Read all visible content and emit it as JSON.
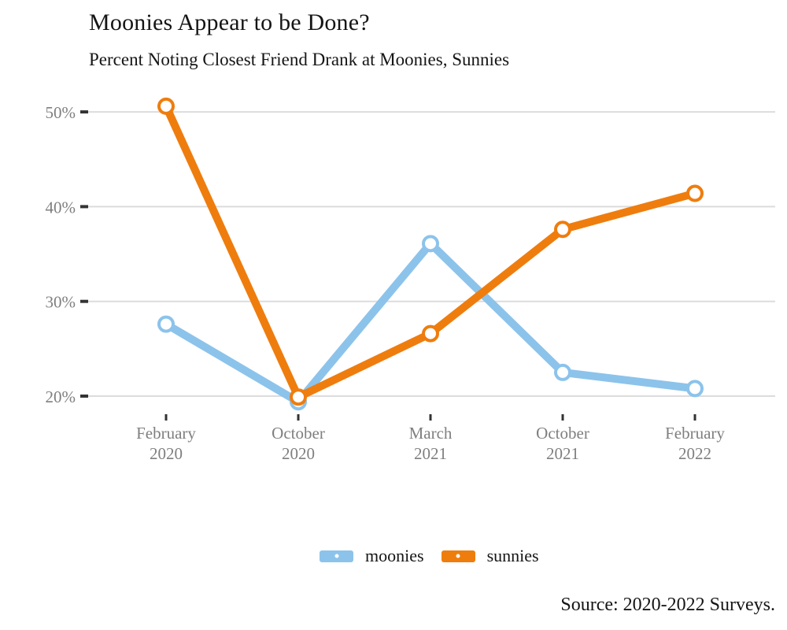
{
  "header": {
    "title": "Moonies Appear to be Done?",
    "subtitle": "Percent Noting Closest Friend Drank at Moonies, Sunnies"
  },
  "chart_data": {
    "type": "line",
    "title": "Moonies Appear to be Done?",
    "subtitle": "Percent Noting Closest Friend Drank at Moonies, Sunnies",
    "categories": [
      [
        "February",
        "2020"
      ],
      [
        "October",
        "2020"
      ],
      [
        "March",
        "2021"
      ],
      [
        "October",
        "2021"
      ],
      [
        "February",
        "2022"
      ]
    ],
    "series": [
      {
        "name": "moonies",
        "color": "#8CC3EB",
        "values": [
          27.6,
          19.4,
          36.1,
          22.5,
          20.8
        ]
      },
      {
        "name": "sunnies",
        "color": "#EE7D0E",
        "values": [
          50.6,
          19.9,
          26.6,
          37.6,
          41.4
        ]
      }
    ],
    "unit": "%",
    "y_ticks": [
      20,
      30,
      40,
      50
    ],
    "y_tick_labels": [
      "20%",
      "30%",
      "40%",
      "50%"
    ],
    "ylim": [
      18.5,
      52.6
    ],
    "xlabel": "",
    "ylabel": "",
    "grid": "horizontal",
    "marker": "open-circle",
    "legend_position": "bottom-center",
    "style": {
      "grid_color": "#DCDCDC",
      "tick_color": "#333333",
      "axis_text_color": "#7F7F7F",
      "text_color": "#151515",
      "background": "#FFFFFF"
    }
  },
  "legend": {
    "items": [
      {
        "label": "moonies",
        "color": "#8CC3EB"
      },
      {
        "label": "sunnies",
        "color": "#EE7D0E"
      }
    ]
  },
  "source": {
    "text": "Source: 2020-2022 Surveys."
  }
}
